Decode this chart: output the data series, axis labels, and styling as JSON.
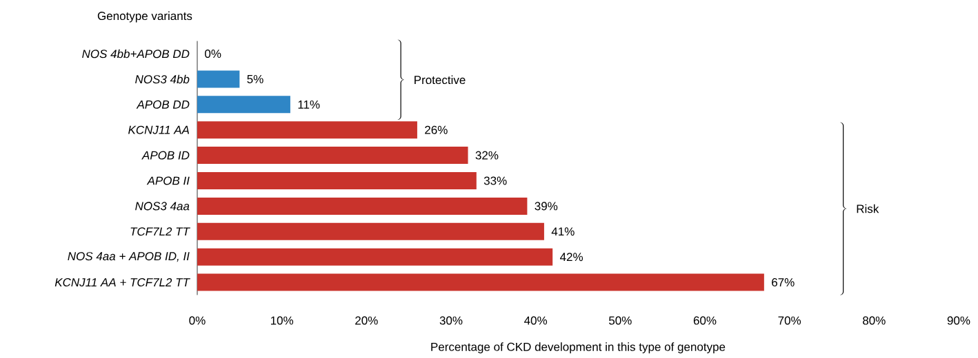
{
  "chart_data": {
    "type": "bar",
    "orientation": "horizontal",
    "ylabel": "Genotype variants",
    "xlabel": "Percentage of CKD development in this type of genotype",
    "categories": [
      "NOS 4bb+APOB DD",
      "NOS3 4bb",
      "APOB DD",
      "KCNJ11 AA",
      "APOB ID",
      "APOB II",
      "NOS3 4aa",
      "TCF7L2 TT",
      "NOS 4aa + APOB ID, II",
      "KCNJ11 AA + TCF7L2 TT"
    ],
    "values": [
      0,
      5,
      11,
      26,
      32,
      33,
      39,
      41,
      42,
      67
    ],
    "colors": [
      "#2f86c6",
      "#2f86c6",
      "#2f86c6",
      "#c9332c",
      "#c9332c",
      "#c9332c",
      "#c9332c",
      "#c9332c",
      "#c9332c",
      "#c9332c"
    ],
    "value_labels": [
      "0%",
      "5%",
      "11%",
      "26%",
      "32%",
      "33%",
      "39%",
      "41%",
      "42%",
      "67%"
    ],
    "xlim": [
      0,
      90
    ],
    "xticks": [
      {
        "value": 0,
        "label": "0%"
      },
      {
        "value": 10,
        "label": "10%"
      },
      {
        "value": 20,
        "label": "20%"
      },
      {
        "value": 30,
        "label": "30%"
      },
      {
        "value": 40,
        "label": "40%"
      },
      {
        "value": 50,
        "label": "50%"
      },
      {
        "value": 60,
        "label": "60%"
      },
      {
        "value": 70,
        "label": "70%"
      },
      {
        "value": 80,
        "label": "80%"
      },
      {
        "value": 90,
        "label": "90%"
      }
    ],
    "annotations": [
      "Protective",
      "Risk"
    ],
    "grid": false
  }
}
